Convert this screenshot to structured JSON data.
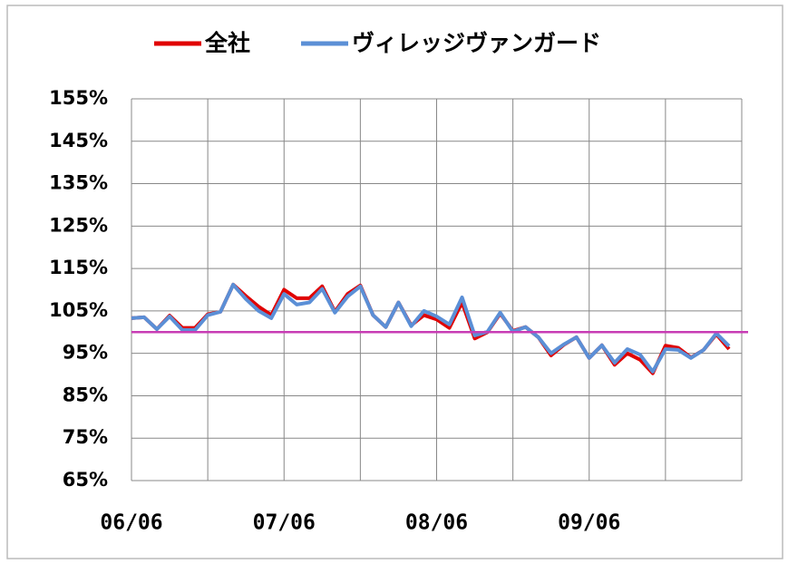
{
  "chart_data": {
    "type": "line",
    "categories": [
      "06/06",
      null,
      null,
      null,
      null,
      null,
      null,
      null,
      null,
      null,
      null,
      null,
      "07/06",
      null,
      null,
      null,
      null,
      null,
      null,
      null,
      null,
      null,
      null,
      null,
      "08/06",
      null,
      null,
      null,
      null,
      null,
      null,
      null,
      null,
      null,
      null,
      null,
      "09/06",
      null,
      null,
      null,
      null,
      null,
      null,
      null,
      null,
      null,
      null,
      null
    ],
    "series": [
      {
        "name": "全社",
        "color": "#e00000",
        "values": [
          103.3,
          103.5,
          100.7,
          103.9,
          101,
          101,
          104.2,
          104.8,
          111.2,
          108.5,
          106,
          104,
          110,
          108,
          108,
          110.8,
          104.8,
          109,
          111,
          104,
          101.2,
          107,
          101.6,
          104,
          103,
          101,
          107,
          98.5,
          100,
          104.4,
          100.3,
          101.2,
          98.8,
          94.5,
          97,
          98.8,
          93.9,
          96.9,
          92.3,
          95,
          93.5,
          90.3,
          96.8,
          96.3,
          94,
          95.8,
          99.5,
          96
        ]
      },
      {
        "name": "ヴィレッジヴァンガード",
        "color": "#5b8fd6",
        "values": [
          103.3,
          103.5,
          100.7,
          103.7,
          100.5,
          100.5,
          104,
          104.8,
          111.2,
          107.8,
          105,
          103.3,
          109,
          106.5,
          107,
          110.2,
          104.6,
          108.4,
          110.8,
          104,
          101.2,
          107,
          101.4,
          105,
          103.7,
          101.8,
          108.2,
          99.2,
          100.1,
          104.6,
          100.1,
          101.2,
          98.8,
          95,
          97.1,
          98.8,
          93.9,
          96.9,
          92.8,
          96,
          94.7,
          90.7,
          96,
          95.8,
          93.9,
          95.8,
          99.7,
          96.7
        ]
      }
    ],
    "reference_line": {
      "value": 100,
      "color": "#c83cb4"
    },
    "ylim": [
      65,
      155
    ],
    "yticks": [
      {
        "value": 65,
        "label": "65%"
      },
      {
        "value": 75,
        "label": "75%"
      },
      {
        "value": 85,
        "label": "85%"
      },
      {
        "value": 95,
        "label": "95%"
      },
      {
        "value": 105,
        "label": "105%"
      },
      {
        "value": 115,
        "label": "115%"
      },
      {
        "value": 125,
        "label": "125%"
      },
      {
        "value": 135,
        "label": "135%"
      },
      {
        "value": 145,
        "label": "145%"
      },
      {
        "value": 155,
        "label": "155%"
      }
    ],
    "grid": true,
    "legend": "top"
  }
}
